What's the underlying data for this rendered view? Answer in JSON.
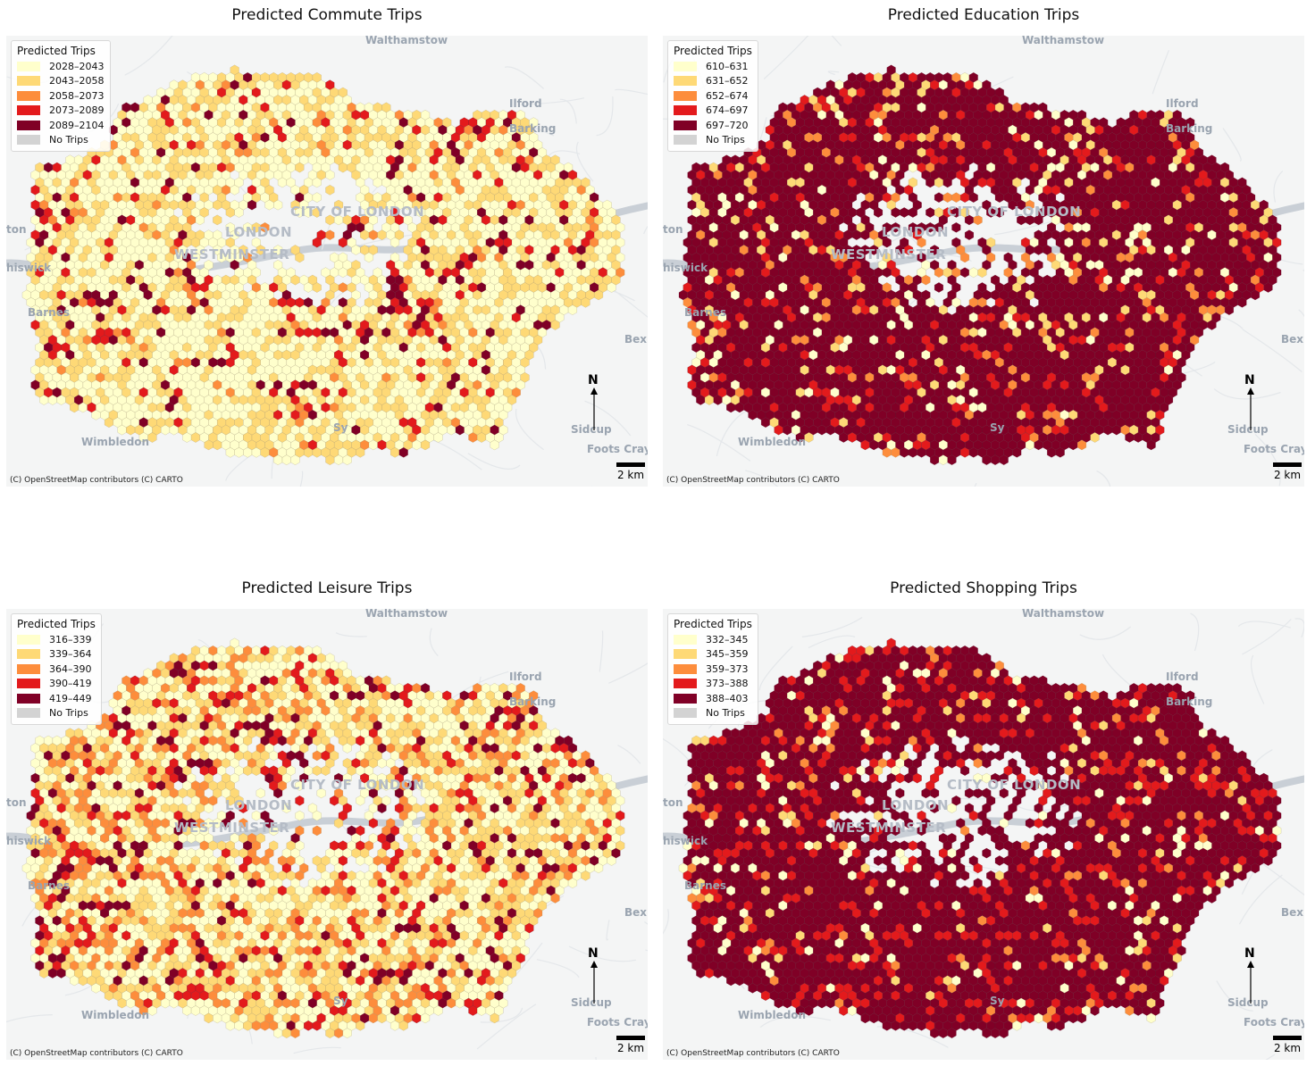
{
  "panels": [
    {
      "title": "Predicted Commute Trips",
      "legend_title": "Predicted Trips",
      "bins": [
        "2028–2043",
        "2043–2058",
        "2058–2073",
        "2073–2089",
        "2089–2104"
      ],
      "no_trips_label": "No Trips",
      "weights": [
        0.55,
        0.33,
        0.03,
        0.05,
        0.04
      ]
    },
    {
      "title": "Predicted Education Trips",
      "legend_title": "Predicted Trips",
      "bins": [
        "610–631",
        "631–652",
        "652–674",
        "674–697",
        "697–720"
      ],
      "no_trips_label": "No Trips",
      "weights": [
        0.05,
        0.06,
        0.06,
        0.1,
        0.73
      ]
    },
    {
      "title": "Predicted Leisure Trips",
      "legend_title": "Predicted Trips",
      "bins": [
        "316–339",
        "339–364",
        "364–390",
        "390–419",
        "419–449"
      ],
      "no_trips_label": "No Trips",
      "weights": [
        0.4,
        0.3,
        0.16,
        0.07,
        0.07
      ]
    },
    {
      "title": "Predicted Shopping Trips",
      "legend_title": "Predicted Trips",
      "bins": [
        "332–345",
        "345–359",
        "359–373",
        "373–388",
        "388–403"
      ],
      "no_trips_label": "No Trips",
      "weights": [
        0.05,
        0.03,
        0.04,
        0.16,
        0.72
      ]
    }
  ],
  "colors": {
    "bins": [
      "#ffffcc",
      "#fed976",
      "#fd8d3c",
      "#e31a1c",
      "#800026"
    ],
    "no_trips": "#d3d3d3",
    "background": "#f4f5f5",
    "water": "#c9cfd6"
  },
  "basemap_labels": {
    "walthamstow": "Walthamstow",
    "ilford": "Ilford",
    "barking": "Barking",
    "city_of_london": "CITY OF LONDON",
    "london": "LONDON",
    "westminster": "WESTMINSTER",
    "chiswick": "hiswick",
    "barnes": "Barnes",
    "bexley": "Bexl",
    "wimbledon": "Wimbledon",
    "sidcup": "Sidcup",
    "foots_cray": "Foots Cray",
    "ealing": "ton",
    "sydenham": "Sy"
  },
  "north_label": "N",
  "scale_label": "2 km",
  "attribution": "(C) OpenStreetMap contributors (C) CARTO"
}
